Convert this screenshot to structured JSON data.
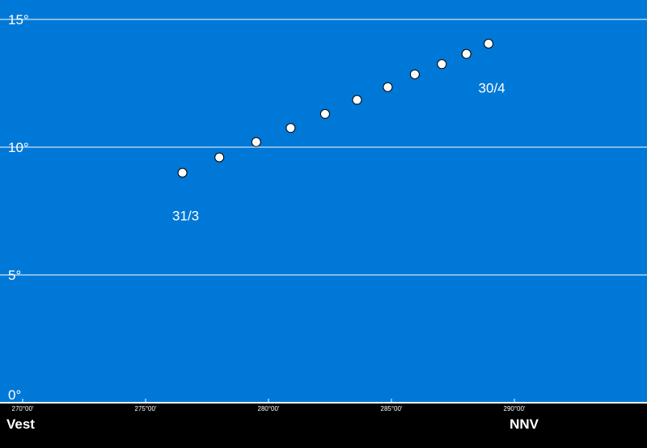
{
  "chart_data": {
    "type": "scatter",
    "title": "",
    "xlabel": "",
    "ylabel": "",
    "xlim": [
      270,
      295.5
    ],
    "ylim": [
      0,
      15
    ],
    "grid": true,
    "colors": {
      "background": "#0078d7",
      "grid": "#ffffff",
      "point_fill": "#ffffff",
      "point_stroke": "#000000",
      "footer": "#000000"
    },
    "y_ticks": [
      {
        "value": 0,
        "label": "0°"
      },
      {
        "value": 5,
        "label": "5°"
      },
      {
        "value": 10,
        "label": "10°"
      },
      {
        "value": 15,
        "label": "15°"
      }
    ],
    "x_ticks": [
      {
        "value": 270,
        "label": "270°00'"
      },
      {
        "value": 275,
        "label": "275°00'"
      },
      {
        "value": 280,
        "label": "280°00'"
      },
      {
        "value": 285,
        "label": "285°00'"
      },
      {
        "value": 290,
        "label": "290°00'"
      }
    ],
    "directions": [
      {
        "value": 270,
        "label": "Vest"
      },
      {
        "value": 290.2,
        "label": "NNV"
      }
    ],
    "points": [
      {
        "x": 276.5,
        "y": 9.0
      },
      {
        "x": 278.0,
        "y": 9.6
      },
      {
        "x": 279.5,
        "y": 10.2
      },
      {
        "x": 280.9,
        "y": 10.75
      },
      {
        "x": 282.3,
        "y": 11.3
      },
      {
        "x": 283.6,
        "y": 11.85
      },
      {
        "x": 284.85,
        "y": 12.35
      },
      {
        "x": 285.95,
        "y": 12.85
      },
      {
        "x": 287.05,
        "y": 13.25
      },
      {
        "x": 288.05,
        "y": 13.65
      },
      {
        "x": 288.95,
        "y": 14.05
      }
    ],
    "annotations": [
      {
        "text": "31/3",
        "x": 276.5,
        "y": 7.3
      },
      {
        "text": "30/4",
        "x": 288.95,
        "y": 12.3
      }
    ]
  }
}
